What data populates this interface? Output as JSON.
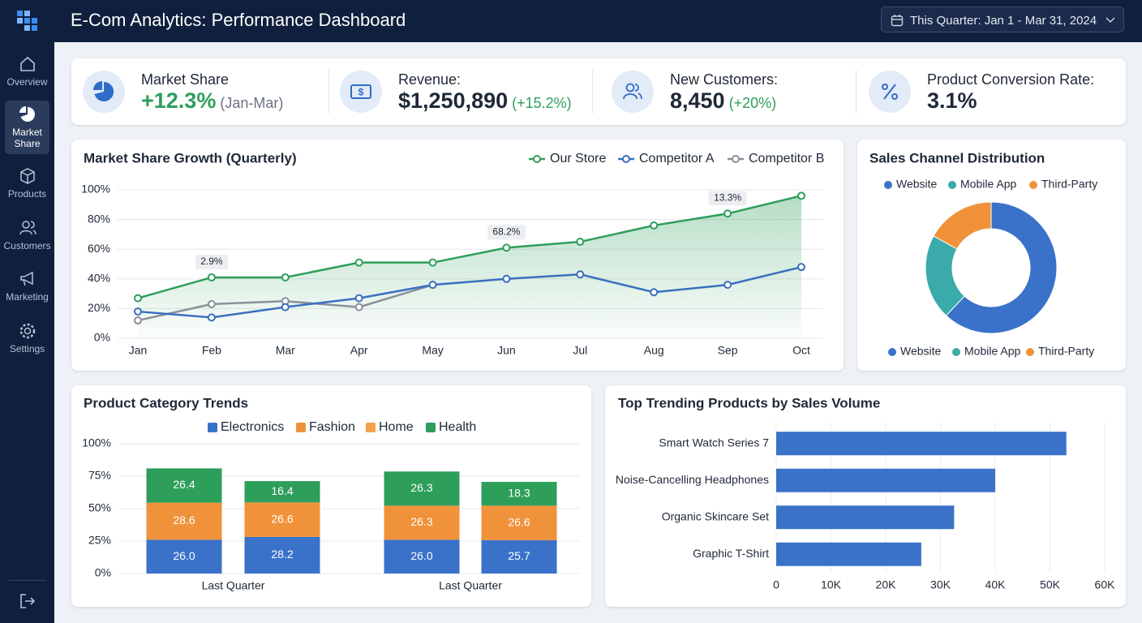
{
  "header": {
    "title": "E-Com Analytics: Performance Dashboard",
    "date_range": "This Quarter: Jan 1 - Mar 31, 2024"
  },
  "sidebar": {
    "items": [
      "Overview",
      "Market Share",
      "Products",
      "Customers",
      "Marketing",
      "Settings"
    ]
  },
  "kpis": [
    {
      "label": "Market Share",
      "value": "+12.3%",
      "note": "(Jan-Mar)"
    },
    {
      "label": "Revenue:",
      "value": "$1,250,890",
      "note": "(+15.2%)"
    },
    {
      "label": "New Customers:",
      "value": "8,450",
      "note": "(+20%)"
    },
    {
      "label": "Product Conversion Rate:",
      "value": "3.1%"
    }
  ],
  "chart_data": [
    {
      "type": "line",
      "title": "Market Share Growth (Quarterly)",
      "categories": [
        "Jan",
        "Feb",
        "Mar",
        "Apr",
        "May",
        "Jun",
        "Jul",
        "Aug",
        "Sep",
        "Oct"
      ],
      "series": [
        {
          "name": "Our Store",
          "color": "#2e9e5b",
          "area": true,
          "values": [
            27,
            41,
            41,
            51,
            51,
            61,
            65,
            76,
            84,
            96
          ]
        },
        {
          "name": "Competitor A",
          "color": "#3a6fc0",
          "values": [
            18,
            14,
            21,
            27,
            36,
            40,
            43,
            31,
            36,
            48
          ]
        },
        {
          "name": "Competitor B",
          "color": "#8a9099",
          "values": [
            12,
            23,
            25,
            21,
            36,
            null,
            null,
            null,
            null,
            null
          ]
        }
      ],
      "annotations": [
        {
          "text": "2.9%",
          "x": "Feb"
        },
        {
          "text": "68.2%",
          "x": "Jun"
        },
        {
          "text": "13.3%",
          "x": "Sep"
        }
      ],
      "ylim": [
        0,
        100
      ],
      "yticks": [
        {
          "value": 0,
          "label": "0%"
        },
        {
          "value": 20,
          "label": "20%"
        },
        {
          "value": 40,
          "label": "40%"
        },
        {
          "value": 60,
          "label": "60%"
        },
        {
          "value": 80,
          "label": "80%"
        },
        {
          "value": 100,
          "label": "100%"
        }
      ],
      "grid": true,
      "legend": "top-right"
    },
    {
      "type": "donut",
      "title": "Sales Channel Distribution",
      "categories": [
        "Website",
        "Mobile App",
        "Third-Party"
      ],
      "values": [
        62,
        21,
        17
      ],
      "colors": [
        "#3a72c9",
        "#3aabaa",
        "#f0923a"
      ],
      "legend": [
        "top",
        "bottom"
      ]
    },
    {
      "type": "stacked_bar",
      "title": "Product Category Trends",
      "categories": [
        "Last Quarter",
        null,
        "Last Quarter",
        null
      ],
      "series": [
        {
          "name": "Electronics",
          "color": "#3a72c9",
          "values": [
            26.0,
            28.2,
            26.0,
            25.7
          ],
          "value_labels": [
            "26.0",
            "28.2",
            "26.0",
            "25.7"
          ]
        },
        {
          "name": "Fashion",
          "color": "#f0923a",
          "values": [
            28.6,
            26.6,
            26.3,
            26.6
          ]
        },
        {
          "name": "Home",
          "color": "#f5a04a",
          "values": [
            null,
            null,
            null,
            null
          ]
        },
        {
          "name": "Health",
          "color": "#2e9e5b",
          "values": [
            26.4,
            16.4,
            26.3,
            18.3
          ]
        }
      ],
      "ylim": [
        0,
        100
      ],
      "yticks": [
        {
          "value": 0,
          "label": "0%"
        },
        {
          "value": 25,
          "label": "25%"
        },
        {
          "value": 50,
          "label": "50%"
        },
        {
          "value": 75,
          "label": "75%"
        },
        {
          "value": 100,
          "label": "100%"
        }
      ],
      "grid": true,
      "legend": "top"
    },
    {
      "type": "hbar",
      "title": "Top Trending Products by Sales Volume",
      "categories": [
        "Smart Watch Series 7",
        "Noise-Cancelling Headphones",
        "Organic Skincare Set",
        "Graphic T-Shirt"
      ],
      "values": [
        53000,
        40000,
        32500,
        26500
      ],
      "color": "#3a72c9",
      "xlim": [
        0,
        60000
      ],
      "xticks": [
        0,
        {
          "value": 10000,
          "label": "10K"
        },
        {
          "value": 20000,
          "label": "20K"
        },
        {
          "value": 30000,
          "label": "30K"
        },
        {
          "value": 40000,
          "label": "40K"
        },
        {
          "value": 50000,
          "label": "50K"
        },
        {
          "value": 60000,
          "label": "60K"
        }
      ],
      "grid": true
    }
  ]
}
